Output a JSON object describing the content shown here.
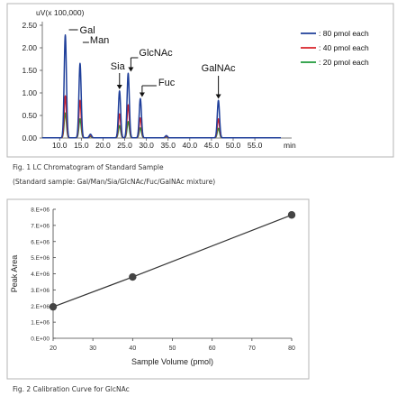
{
  "figure1": {
    "caption": "Fig. 1 LC Chromatogram of Standard Sample",
    "subcaption": "(Standard sample: Gal/Man/Sia/GlcNAc/Fuc/GalNAc mixture)"
  },
  "figure2": {
    "caption": "Fig. 2 Calibration Curve for GlcNAc"
  },
  "chart_data": [
    {
      "type": "line",
      "title": "",
      "unit_label": "uV(x 100,000)",
      "xlabel": "min",
      "ylabel": "",
      "xlim": [
        6,
        61
      ],
      "ylim": [
        0,
        2.5
      ],
      "x_ticks": [
        10.0,
        15.0,
        20.0,
        25.0,
        30.0,
        35.0,
        40.0,
        45.0,
        50.0,
        55.0
      ],
      "x_tick_labels": [
        "10.0",
        "15.0",
        "20.0",
        "25.0",
        "30.0",
        "35.0",
        "40.0",
        "45.0",
        "50.0",
        "55.0"
      ],
      "y_ticks": [
        0,
        0.5,
        1.0,
        1.5,
        2.0,
        2.5
      ],
      "y_tick_labels": [
        "0.00",
        "0.50",
        "1.00",
        "1.50",
        "2.00",
        "2.50"
      ],
      "legend_position": "top-right",
      "grid": false,
      "series": [
        {
          "name": ": 80 pmol each",
          "color": "#1f3f9a",
          "peaks": [
            [
              11.3,
              2.28
            ],
            [
              14.7,
              1.65
            ],
            [
              17.1,
              0.08
            ],
            [
              23.8,
              1.04
            ],
            [
              25.8,
              1.43
            ],
            [
              28.6,
              0.87
            ],
            [
              34.6,
              0.05
            ],
            [
              46.6,
              0.83
            ]
          ]
        },
        {
          "name": ": 40 pmol each",
          "color": "#d8222a",
          "peaks": [
            [
              11.3,
              0.93
            ],
            [
              14.7,
              0.83
            ],
            [
              17.1,
              0.05
            ],
            [
              23.8,
              0.53
            ],
            [
              25.8,
              0.73
            ],
            [
              28.6,
              0.44
            ],
            [
              34.6,
              0.03
            ],
            [
              46.6,
              0.42
            ]
          ]
        },
        {
          "name": ": 20 pmol each",
          "color": "#1e9a3a",
          "peaks": [
            [
              11.3,
              0.55
            ],
            [
              14.7,
              0.42
            ],
            [
              17.1,
              0.03
            ],
            [
              23.8,
              0.27
            ],
            [
              25.8,
              0.36
            ],
            [
              28.6,
              0.22
            ],
            [
              34.6,
              0.02
            ],
            [
              46.6,
              0.21
            ]
          ]
        }
      ],
      "peak_labels": [
        {
          "text": "Gal",
          "x": 11.3
        },
        {
          "text": "Man",
          "x": 14.7
        },
        {
          "text": "Sia",
          "x": 23.8
        },
        {
          "text": "GlcNAc",
          "x": 25.8
        },
        {
          "text": "Fuc",
          "x": 28.6
        },
        {
          "text": "GalNAc",
          "x": 46.6
        }
      ]
    },
    {
      "type": "scatter",
      "title": "",
      "xlabel": "Sample Volume (pmol)",
      "ylabel": "Peak Area",
      "xlim": [
        20,
        80
      ],
      "ylim": [
        0,
        8000000
      ],
      "x_ticks": [
        20,
        30,
        40,
        50,
        60,
        70,
        80
      ],
      "x_tick_labels": [
        "20",
        "30",
        "40",
        "50",
        "60",
        "70",
        "80"
      ],
      "y_ticks": [
        0,
        1000000,
        2000000,
        3000000,
        4000000,
        5000000,
        6000000,
        7000000,
        8000000
      ],
      "y_tick_labels": [
        "0.E+00",
        "1.E+06",
        "2.E+06",
        "3.E+06",
        "4.E+06",
        "5.E+06",
        "6.E+06",
        "7.E+06",
        "8.E+06"
      ],
      "grid": false,
      "series": [
        {
          "color": "#444444",
          "x": [
            20,
            40,
            80
          ],
          "y": [
            1950000,
            3800000,
            7650000
          ]
        }
      ]
    }
  ]
}
